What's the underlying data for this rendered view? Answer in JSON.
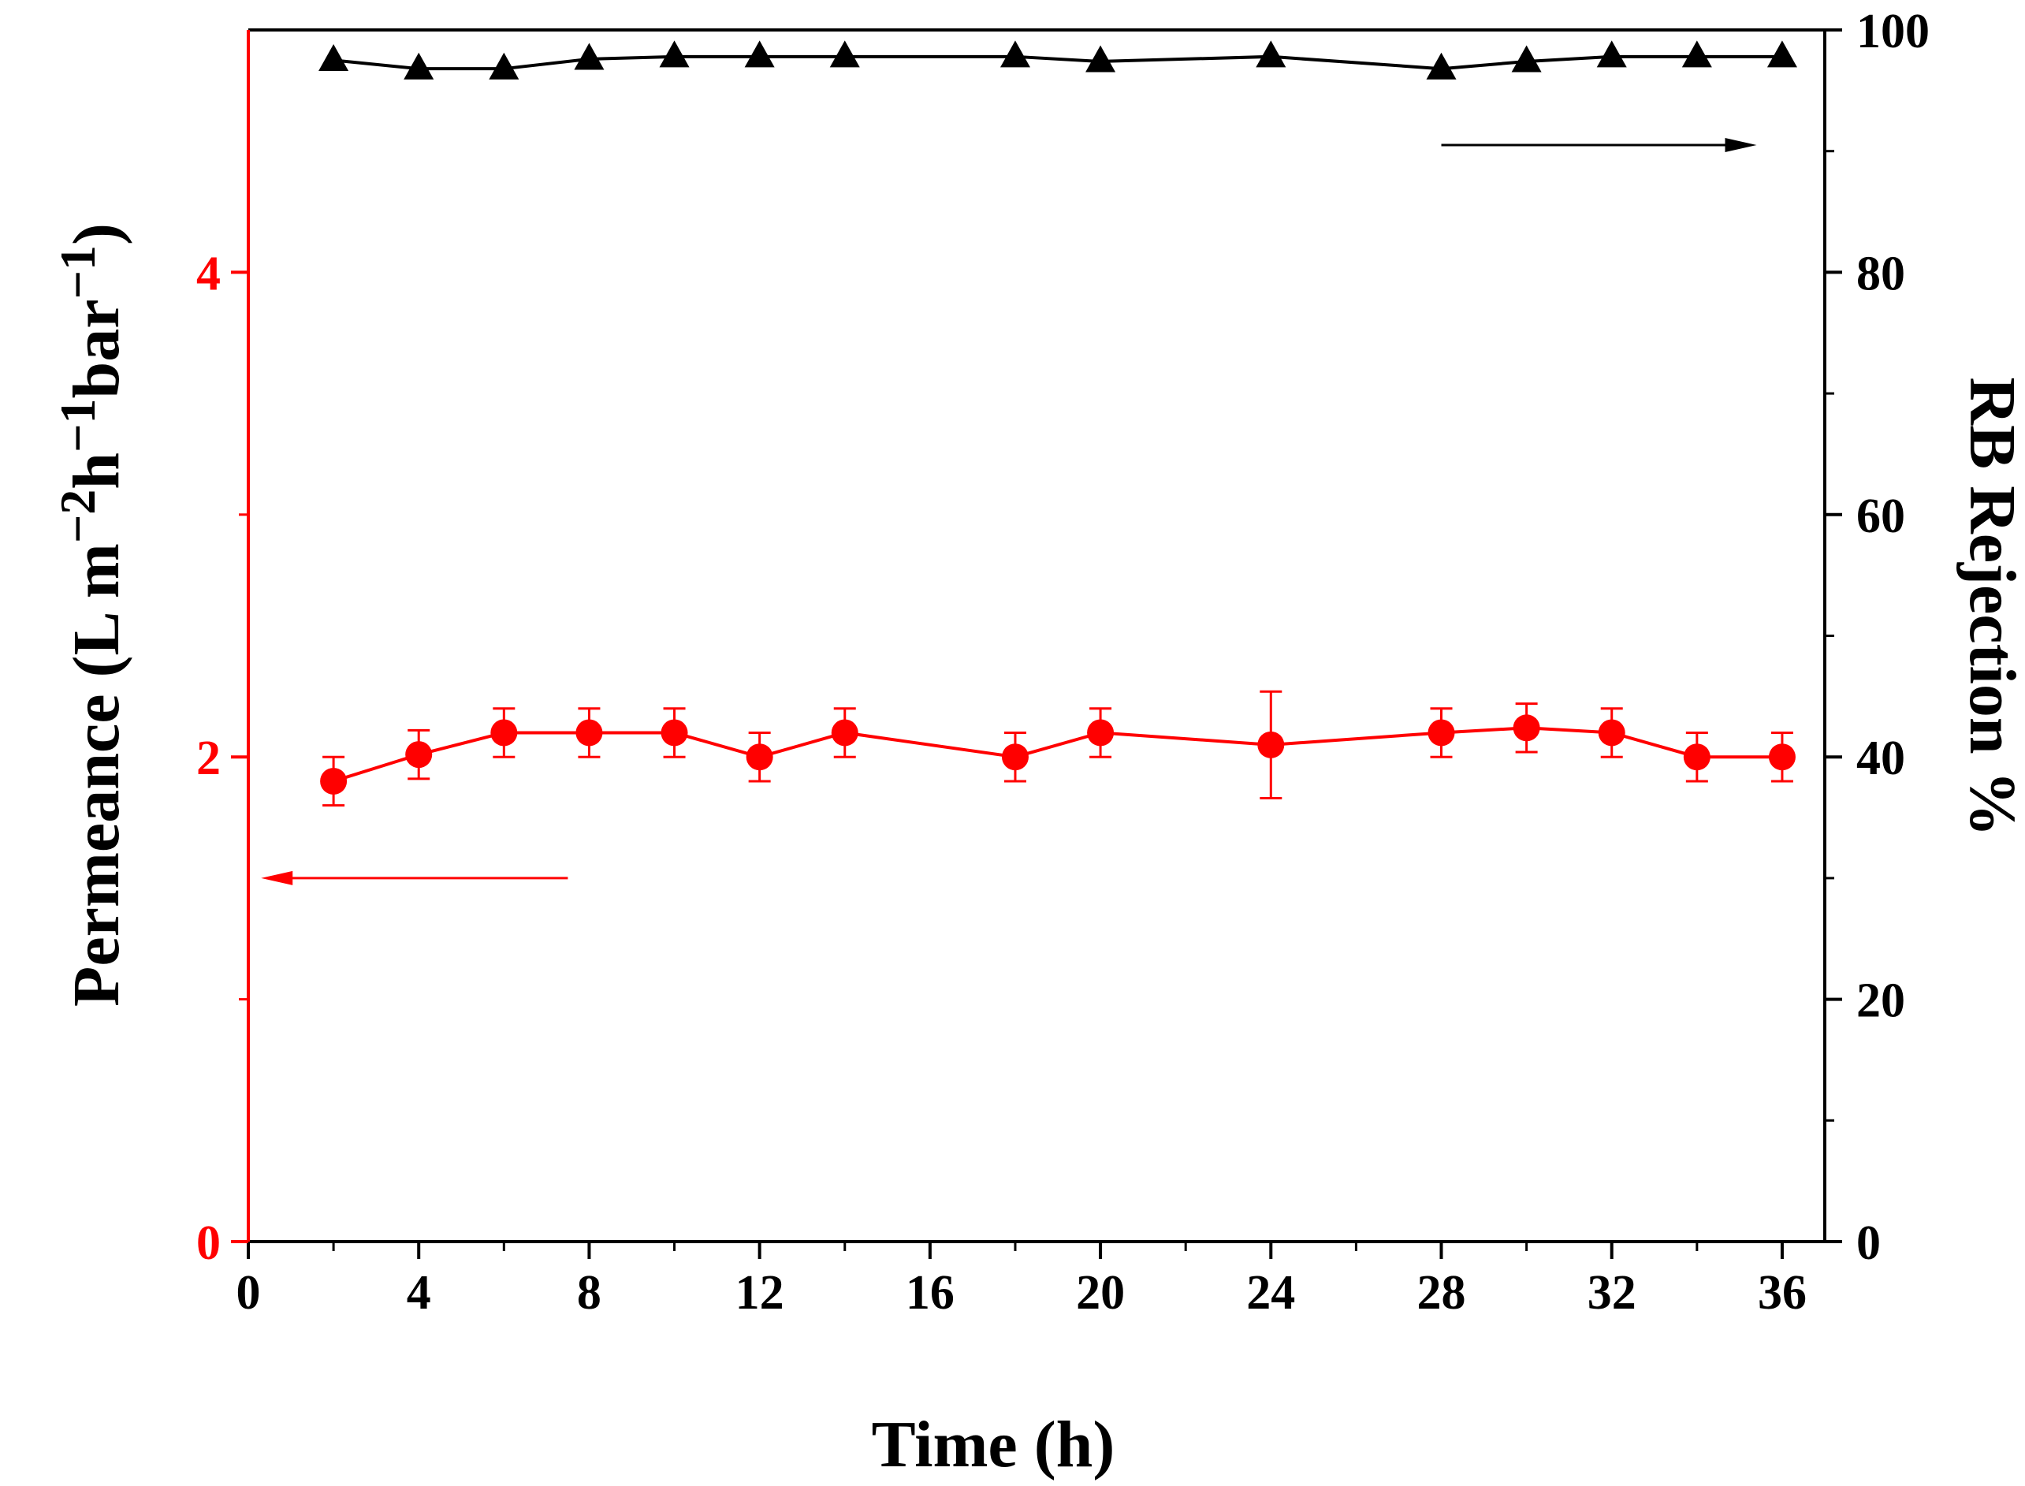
{
  "chart_data": {
    "type": "line",
    "xlabel": "Time (h)",
    "ylabel_left": {
      "parts": [
        {
          "text": "Permeance (L m",
          "sup": false
        },
        {
          "text": "−2",
          "sup": true
        },
        {
          "text": "h",
          "sup": false
        },
        {
          "text": "−1",
          "sup": true
        },
        {
          "text": "bar",
          "sup": false
        },
        {
          "text": "−1",
          "sup": true
        },
        {
          "text": ")",
          "sup": false
        }
      ]
    },
    "ylabel_right": "RB Rejection %",
    "xlim": [
      0,
      37
    ],
    "xticks": [
      0,
      4,
      8,
      12,
      16,
      20,
      24,
      28,
      32,
      36
    ],
    "xticks_minor": [
      2,
      6,
      10,
      14,
      18,
      22,
      26,
      30,
      34
    ],
    "ylim_left": [
      0,
      5
    ],
    "yticks_left": [
      0,
      2,
      4
    ],
    "yticks_left_minor": [
      1,
      3
    ],
    "ylim_right": [
      0,
      100
    ],
    "yticks_right": [
      0,
      20,
      40,
      60,
      80,
      100
    ],
    "yticks_right_minor": [
      10,
      30,
      50,
      70,
      90
    ],
    "colors": {
      "left_axis": "#ff0000",
      "right_axis": "#000000"
    },
    "series": [
      {
        "name": "Permeance",
        "axis": "left",
        "color": "#ff0000",
        "marker": "circle",
        "x": [
          2,
          4,
          6,
          8,
          10,
          12,
          14,
          18,
          20,
          24,
          28,
          30,
          32,
          34,
          36
        ],
        "y": [
          1.9,
          2.01,
          2.1,
          2.1,
          2.1,
          2.0,
          2.1,
          2.0,
          2.1,
          2.05,
          2.1,
          2.12,
          2.1,
          2.0,
          2.0
        ],
        "err": [
          0.1,
          0.1,
          0.1,
          0.1,
          0.1,
          0.1,
          0.1,
          0.1,
          0.1,
          0.22,
          0.1,
          0.1,
          0.1,
          0.1,
          0.1
        ]
      },
      {
        "name": "RB Rejection",
        "axis": "right",
        "color": "#000000",
        "marker": "triangle",
        "x": [
          2,
          4,
          6,
          8,
          10,
          12,
          14,
          18,
          20,
          24,
          28,
          30,
          32,
          34,
          36
        ],
        "y": [
          97.5,
          96.8,
          96.8,
          97.6,
          97.8,
          97.8,
          97.8,
          97.8,
          97.4,
          97.8,
          96.8,
          97.4,
          97.8,
          97.8,
          97.8
        ]
      }
    ],
    "annotations": [
      {
        "name": "arrow-left",
        "direction": "left",
        "color": "#ff0000",
        "x_from": 7.5,
        "x_to": 0.3,
        "y_left": 1.5
      },
      {
        "name": "arrow-right",
        "direction": "right",
        "color": "#000000",
        "x_from": 28,
        "x_to": 35.4,
        "y_right": 90.5
      }
    ]
  }
}
